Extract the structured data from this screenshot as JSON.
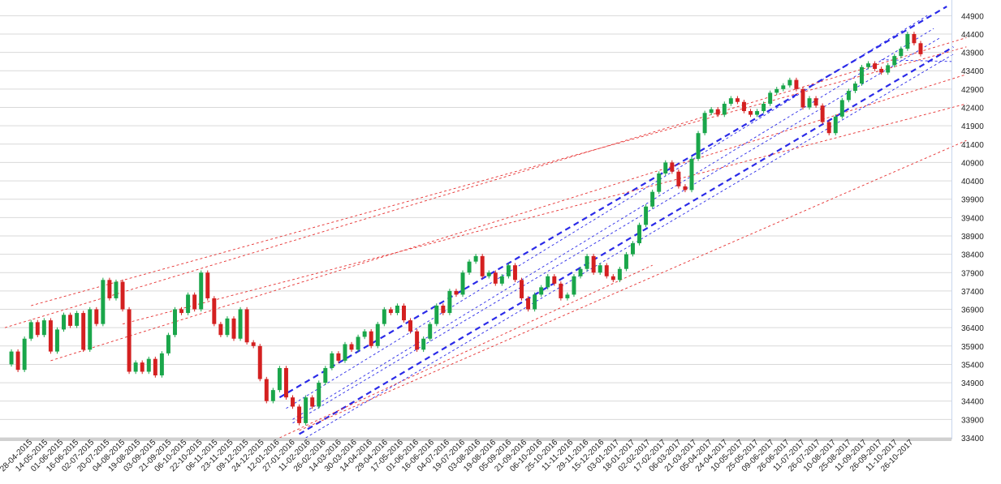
{
  "chart_data": {
    "type": "candlestick",
    "title": "",
    "xlabel": "",
    "ylabel": "",
    "ylim": [
      33400,
      45150
    ],
    "grid": "horizontal",
    "colors": {
      "up": "#1aa64a",
      "down": "#d42020",
      "trend_blue": "#2a2ae8",
      "trend_red": "#e63030",
      "grid": "#d9d9d9"
    },
    "y_ticks": [
      33400,
      33900,
      34400,
      34900,
      35400,
      35900,
      36400,
      36900,
      37400,
      37900,
      38400,
      38900,
      39400,
      39900,
      40400,
      40900,
      41400,
      41900,
      42400,
      42900,
      43400,
      43900,
      44400,
      44900
    ],
    "x_tick_labels": [
      "28-04-2015",
      "14-05-2015",
      "01-06-2015",
      "16-06-2015",
      "02-07-2015",
      "20-07-2015",
      "04-08-2015",
      "19-08-2015",
      "03-09-2015",
      "21-09-2015",
      "06-10-2015",
      "22-10-2015",
      "06-11-2015",
      "23-11-2015",
      "09-12-2015",
      "24-12-2015",
      "12-01-2016",
      "27-01-2016",
      "11-02-2016",
      "26-02-2016",
      "14-03-2016",
      "30-03-2016",
      "14-04-2016",
      "29-04-2016",
      "17-05-2016",
      "01-06-2016",
      "16-06-2016",
      "04-07-2016",
      "19-07-2016",
      "03-08-2016",
      "19-08-2016",
      "05-09-2016",
      "21-09-2016",
      "06-10-2016",
      "25-10-2016",
      "11-11-2016",
      "29-11-2016",
      "15-12-2016",
      "03-01-2017",
      "18-01-2017",
      "02-02-2017",
      "17-02-2017",
      "06-03-2017",
      "21-03-2017",
      "05-04-2017",
      "24-04-2017",
      "10-05-2017",
      "25-05-2017",
      "09-06-2017",
      "26-06-2017",
      "11-07-2017",
      "26-07-2017",
      "10-08-2017",
      "25-08-2017",
      "11-09-2017",
      "26-09-2017",
      "11-10-2017",
      "26-10-2017"
    ],
    "price_path": [
      [
        0,
        35400
      ],
      [
        1,
        35750
      ],
      [
        2,
        35250
      ],
      [
        3,
        36100
      ],
      [
        4,
        36550
      ],
      [
        5,
        36200
      ],
      [
        6,
        36600
      ],
      [
        7,
        35750
      ],
      [
        8,
        36350
      ],
      [
        9,
        36750
      ],
      [
        10,
        36450
      ],
      [
        11,
        36800
      ],
      [
        12,
        35800
      ],
      [
        13,
        36900
      ],
      [
        14,
        36500
      ],
      [
        15,
        37700
      ],
      [
        16,
        37200
      ],
      [
        17,
        37650
      ],
      [
        18,
        36900
      ],
      [
        19,
        35200
      ],
      [
        20,
        35450
      ],
      [
        21,
        35200
      ],
      [
        22,
        35550
      ],
      [
        23,
        35100
      ],
      [
        24,
        35700
      ],
      [
        25,
        36200
      ],
      [
        26,
        36900
      ],
      [
        27,
        36800
      ],
      [
        28,
        37300
      ],
      [
        29,
        36900
      ],
      [
        30,
        37900
      ],
      [
        31,
        37200
      ],
      [
        32,
        36500
      ],
      [
        33,
        36200
      ],
      [
        34,
        36650
      ],
      [
        35,
        36100
      ],
      [
        36,
        36900
      ],
      [
        37,
        36000
      ],
      [
        38,
        35900
      ],
      [
        39,
        35000
      ],
      [
        40,
        34400
      ],
      [
        41,
        34700
      ],
      [
        42,
        35300
      ],
      [
        43,
        34500
      ],
      [
        44,
        34250
      ],
      [
        45,
        33800
      ],
      [
        46,
        34500
      ],
      [
        47,
        34250
      ],
      [
        48,
        34900
      ],
      [
        49,
        35300
      ],
      [
        50,
        35700
      ],
      [
        51,
        35500
      ],
      [
        52,
        35950
      ],
      [
        53,
        35800
      ],
      [
        54,
        36150
      ],
      [
        55,
        36300
      ],
      [
        56,
        35900
      ],
      [
        57,
        36500
      ],
      [
        58,
        36900
      ],
      [
        59,
        36800
      ],
      [
        60,
        37000
      ],
      [
        61,
        36600
      ],
      [
        62,
        36300
      ],
      [
        63,
        35800
      ],
      [
        64,
        36100
      ],
      [
        65,
        36500
      ],
      [
        66,
        37000
      ],
      [
        67,
        36800
      ],
      [
        68,
        37400
      ],
      [
        69,
        37300
      ],
      [
        70,
        37900
      ],
      [
        71,
        38200
      ],
      [
        72,
        38350
      ],
      [
        73,
        37800
      ],
      [
        74,
        37900
      ],
      [
        75,
        37600
      ],
      [
        76,
        37800
      ],
      [
        77,
        38100
      ],
      [
        78,
        37700
      ],
      [
        79,
        37200
      ],
      [
        80,
        36900
      ],
      [
        81,
        37300
      ],
      [
        82,
        37500
      ],
      [
        83,
        37800
      ],
      [
        84,
        37600
      ],
      [
        85,
        37200
      ],
      [
        86,
        37300
      ],
      [
        87,
        37800
      ],
      [
        88,
        38000
      ],
      [
        89,
        38350
      ],
      [
        90,
        37900
      ],
      [
        91,
        38100
      ],
      [
        92,
        37800
      ],
      [
        93,
        37700
      ],
      [
        94,
        38000
      ],
      [
        95,
        38400
      ],
      [
        96,
        38700
      ],
      [
        97,
        39200
      ],
      [
        98,
        39700
      ],
      [
        99,
        40100
      ],
      [
        100,
        40600
      ],
      [
        101,
        40900
      ],
      [
        102,
        40650
      ],
      [
        103,
        40250
      ],
      [
        104,
        40150
      ],
      [
        105,
        41000
      ],
      [
        106,
        41700
      ],
      [
        107,
        42250
      ],
      [
        108,
        42350
      ],
      [
        109,
        42200
      ],
      [
        110,
        42500
      ],
      [
        111,
        42650
      ],
      [
        112,
        42550
      ],
      [
        113,
        42300
      ],
      [
        114,
        42200
      ],
      [
        115,
        42300
      ],
      [
        116,
        42500
      ],
      [
        117,
        42800
      ],
      [
        118,
        42900
      ],
      [
        119,
        43000
      ],
      [
        120,
        43150
      ],
      [
        121,
        42900
      ],
      [
        122,
        42400
      ],
      [
        123,
        42650
      ],
      [
        124,
        42450
      ],
      [
        125,
        42000
      ],
      [
        126,
        41700
      ],
      [
        127,
        42150
      ],
      [
        128,
        42600
      ],
      [
        129,
        42850
      ],
      [
        130,
        43050
      ],
      [
        131,
        43500
      ],
      [
        132,
        43600
      ],
      [
        133,
        43450
      ],
      [
        134,
        43350
      ],
      [
        135,
        43550
      ],
      [
        136,
        43800
      ],
      [
        137,
        44000
      ],
      [
        138,
        44400
      ],
      [
        139,
        44150
      ],
      [
        140,
        43850
      ]
    ],
    "trend_lines": [
      {
        "color": "blue",
        "style": "bold",
        "from": [
          42,
          34500
        ],
        "to": [
          144,
          45150
        ]
      },
      {
        "color": "blue",
        "style": "bold",
        "from": [
          45,
          33500
        ],
        "to": [
          145,
          44050
        ]
      },
      {
        "color": "blue",
        "style": "thin",
        "from": [
          43,
          34200
        ],
        "to": [
          141,
          44900
        ]
      },
      {
        "color": "blue",
        "style": "thin",
        "from": [
          44,
          33900
        ],
        "to": [
          142,
          44550
        ]
      },
      {
        "color": "blue",
        "style": "thin",
        "from": [
          44,
          33800
        ],
        "to": [
          143,
          44300
        ]
      },
      {
        "color": "blue",
        "style": "thin",
        "from": [
          46,
          33400
        ],
        "to": [
          145,
          43850
        ]
      },
      {
        "color": "blue",
        "style": "thin",
        "from": [
          134,
          43700
        ],
        "to": [
          145,
          43650
        ]
      },
      {
        "color": "red",
        "style": "thin",
        "from": [
          0,
          36400
        ],
        "to": [
          147,
          44300
        ]
      },
      {
        "color": "red",
        "style": "thin",
        "from": [
          4,
          37000
        ],
        "to": [
          147,
          44050
        ]
      },
      {
        "color": "red",
        "style": "thin",
        "from": [
          7,
          35500
        ],
        "to": [
          147,
          43300
        ]
      },
      {
        "color": "red",
        "style": "thin",
        "from": [
          18,
          36500
        ],
        "to": [
          147,
          42500
        ]
      },
      {
        "color": "red",
        "style": "thin",
        "from": [
          45,
          33600
        ],
        "to": [
          147,
          41500
        ]
      },
      {
        "color": "red",
        "style": "thin",
        "from": [
          42,
          33400
        ],
        "to": [
          99,
          38100
        ]
      }
    ]
  }
}
